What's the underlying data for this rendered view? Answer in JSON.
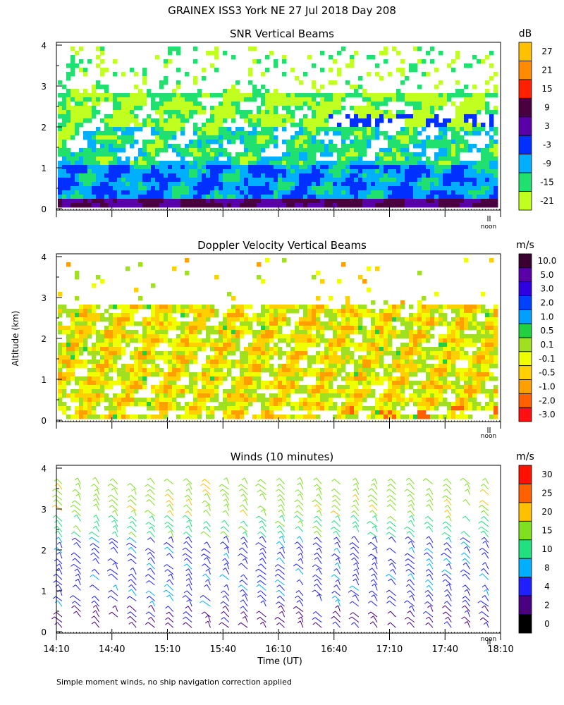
{
  "figure": {
    "title": "GRAINEX ISS3 York NE  27 Jul 2018 Day 208",
    "footnote": "Simple moment winds, no ship navigation correction applied"
  },
  "chart_data": [
    {
      "type": "heatmap",
      "title": "SNR Vertical Beams",
      "ylabel": "Altitude (km)",
      "ylim": [
        0,
        4
      ],
      "yticks": [
        "0",
        "1",
        "2",
        "3",
        "4"
      ],
      "noon_label": "noon",
      "colorbar": {
        "units": "dB",
        "labels": [
          "27",
          "21",
          "15",
          "9",
          "3",
          "-3",
          "-9",
          "-15",
          "-21"
        ],
        "colors": [
          "#ffc000",
          "#ff8c00",
          "#ff2000",
          "#4a0040",
          "#5a00a8",
          "#0030ff",
          "#00b0ff",
          "#20e070",
          "#c0ff20"
        ]
      }
    },
    {
      "type": "heatmap",
      "title": "Doppler Velocity Vertical Beams",
      "ylabel": "Altitude (km)",
      "ylim": [
        0,
        4
      ],
      "yticks": [
        "0",
        "1",
        "2",
        "3",
        "4"
      ],
      "noon_label": "noon",
      "colorbar": {
        "units": "m/s",
        "labels": [
          "10.0",
          "5.0",
          "3.0",
          "2.0",
          "1.0",
          "0.5",
          "0.1",
          "-0.1",
          "-0.5",
          "-1.0",
          "-2.0",
          "-3.0"
        ],
        "colors": [
          "#3a0030",
          "#5a00a8",
          "#3000e0",
          "#0040ff",
          "#00a0ff",
          "#20d040",
          "#a0e020",
          "#f0ff00",
          "#ffd000",
          "#ffa000",
          "#ff6000",
          "#ff1010"
        ]
      }
    },
    {
      "type": "scatter",
      "title": "Winds (10 minutes)",
      "ylabel": "Altitude (km)",
      "xlabel": "Time (UT)",
      "ylim": [
        0,
        4
      ],
      "yticks": [
        "0",
        "1",
        "2",
        "3",
        "4"
      ],
      "xticks": [
        "14:10",
        "14:40",
        "15:10",
        "15:40",
        "16:10",
        "16:40",
        "17:10",
        "17:40",
        "18:10"
      ],
      "noon_label": "noon",
      "colorbar": {
        "units": "m/s",
        "labels": [
          "30",
          "25",
          "20",
          "15",
          "10",
          "8",
          "4",
          "2",
          "0"
        ],
        "colors": [
          "#ff1000",
          "#ff6000",
          "#ffc000",
          "#80e020",
          "#20e080",
          "#00b0ff",
          "#2020ff",
          "#4a0080",
          "#000000"
        ]
      }
    }
  ]
}
